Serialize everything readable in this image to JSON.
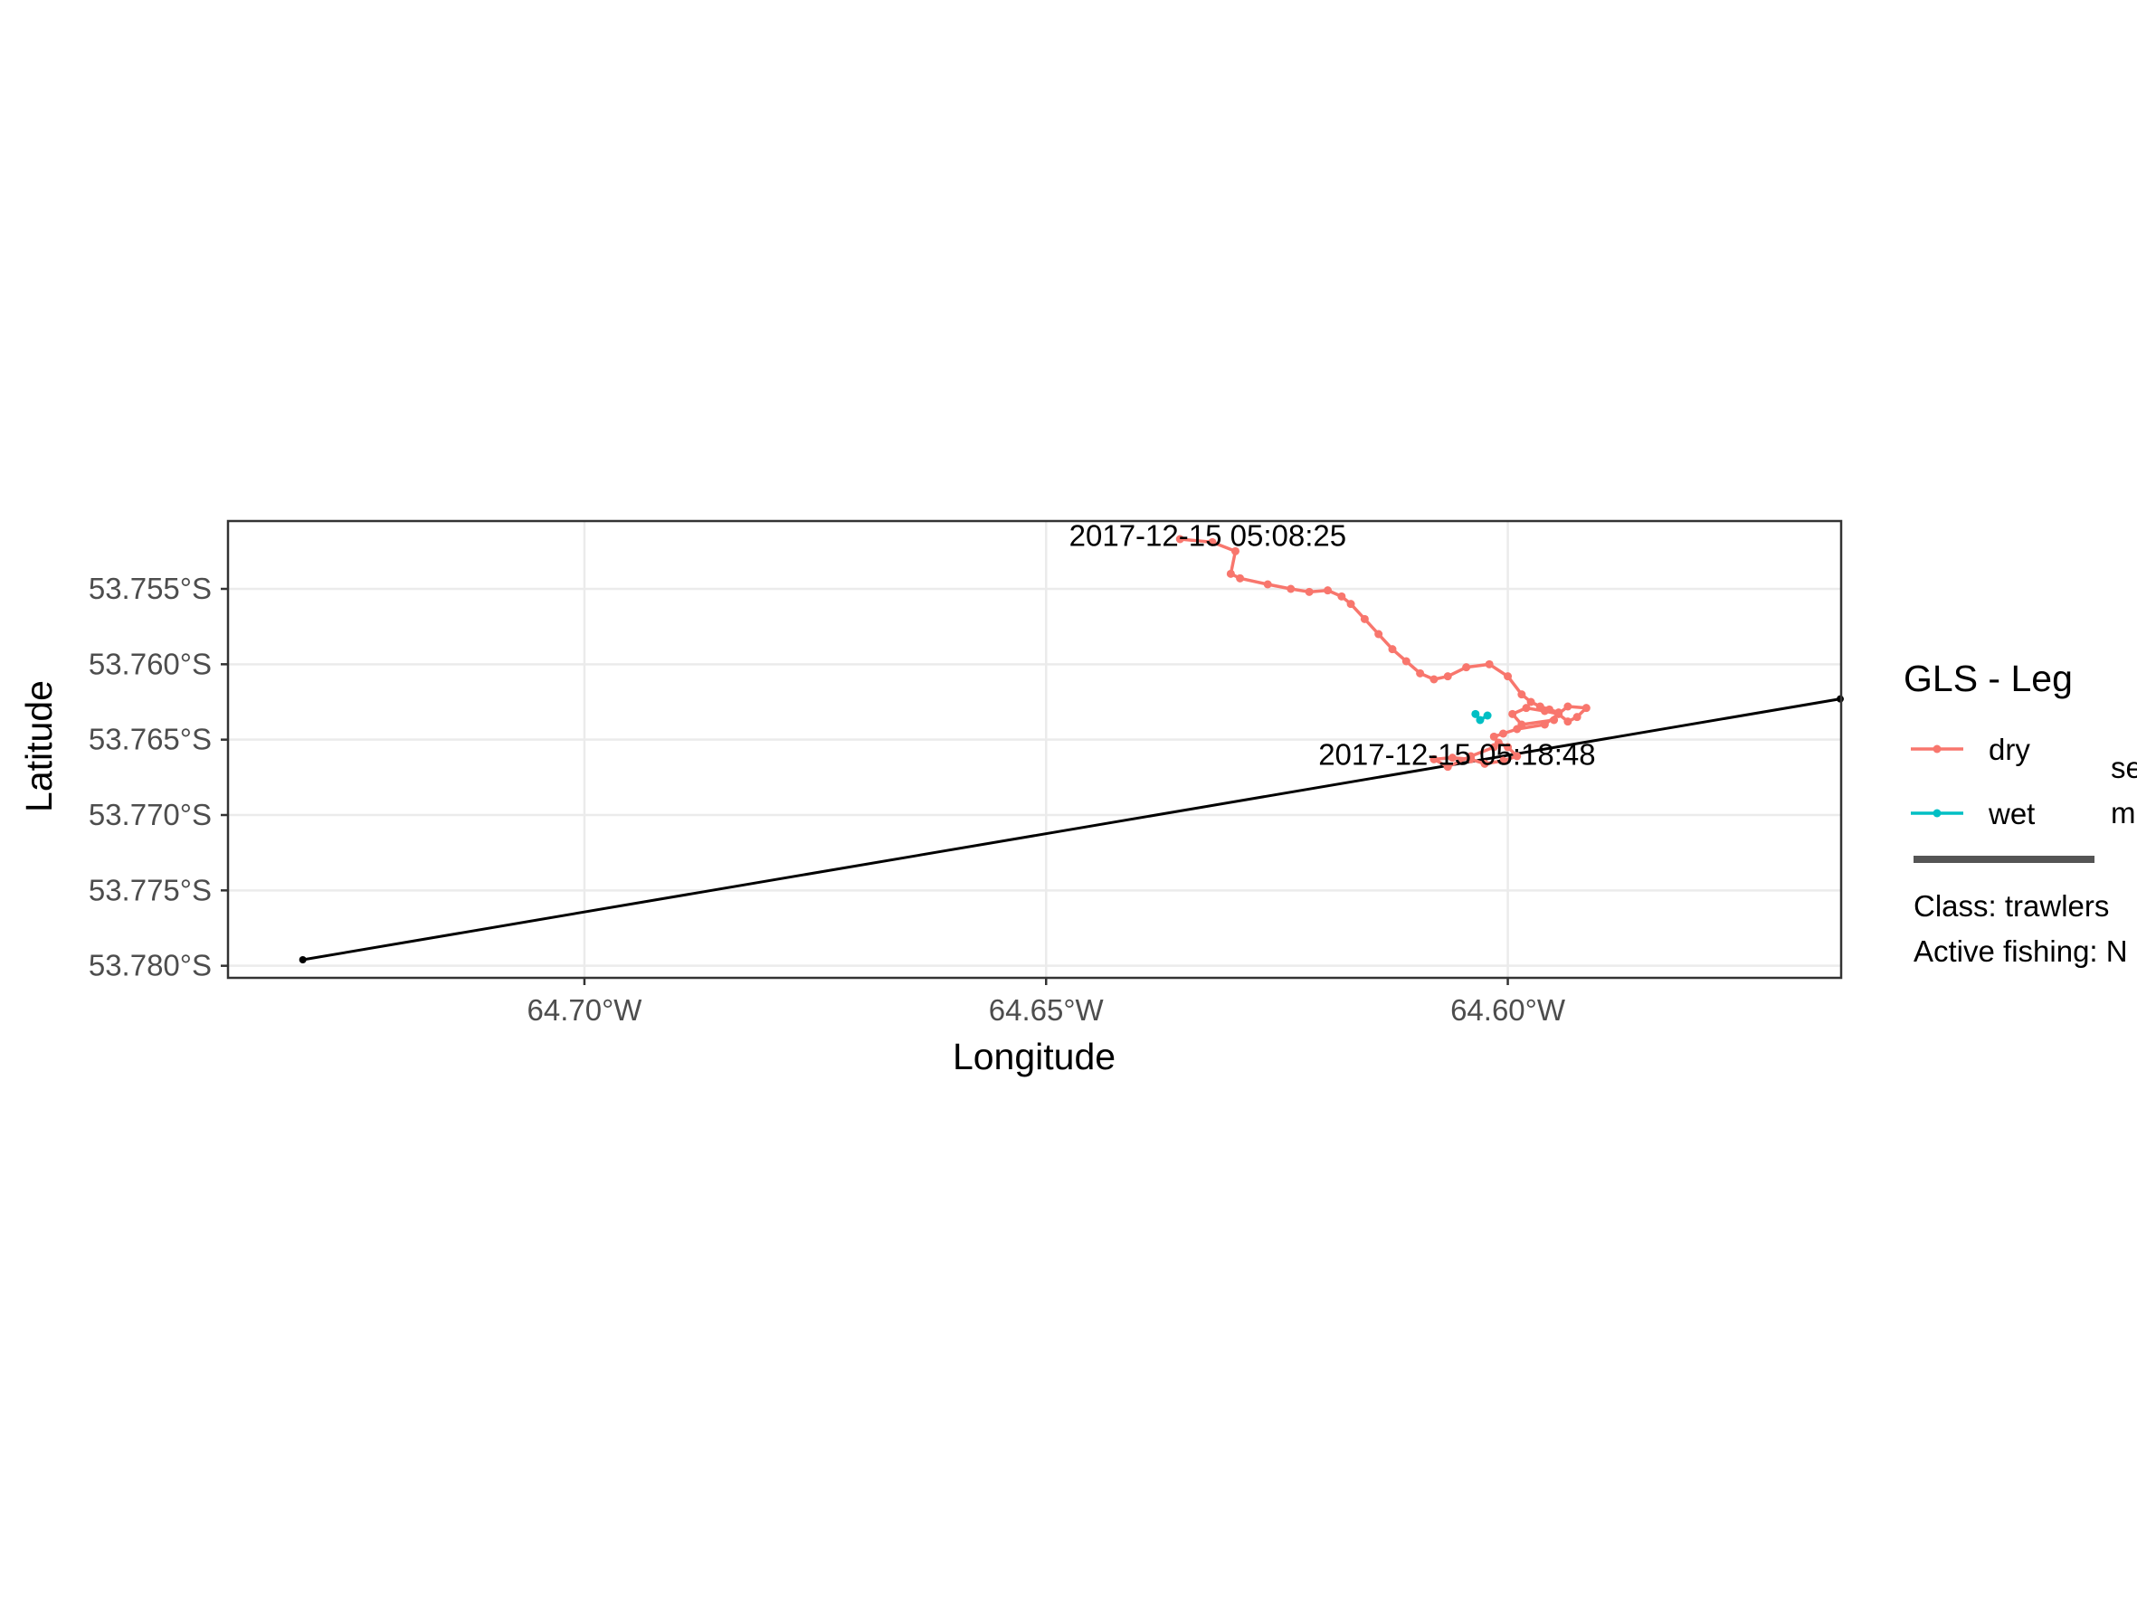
{
  "chart_data": {
    "type": "line",
    "xlabel": "Longitude",
    "ylabel": "Latitude",
    "xlim": [
      -64.7386,
      -64.5639
    ],
    "ylim": [
      -53.7808,
      -53.7505
    ],
    "x_ticks": [
      -64.7,
      -64.65,
      -64.6
    ],
    "x_tick_labels": [
      "64.70°W",
      "64.65°W",
      "64.60°W"
    ],
    "y_ticks": [
      -53.755,
      -53.76,
      -53.765,
      -53.77,
      -53.775,
      -53.78
    ],
    "y_tick_labels": [
      "53.755°S",
      "53.760°S",
      "53.765°S",
      "53.770°S",
      "53.775°S",
      "53.780°S"
    ],
    "grid": true,
    "legend": {
      "title": "GLS - Leg",
      "position": "right",
      "entries": [
        {
          "label": "dry",
          "color": "#F8766D"
        },
        {
          "label": "wet",
          "color": "#00BFC4"
        }
      ]
    },
    "series": [
      {
        "name": "dry",
        "color": "#F8766D",
        "x": [
          -64.6355,
          -64.632,
          -64.6295,
          -64.63,
          -64.629,
          -64.626,
          -64.6235,
          -64.6215,
          -64.6195,
          -64.618,
          -64.617,
          -64.6155,
          -64.614,
          -64.6125,
          -64.611,
          -64.6095,
          -64.608,
          -64.6065,
          -64.6045,
          -64.602,
          -64.6,
          -64.5985,
          -64.5975,
          -64.5965,
          -64.5955,
          -64.5945,
          -64.595,
          -64.5985,
          -64.5995,
          -64.598,
          -64.596,
          -64.5945,
          -64.5935,
          -64.5925,
          -64.5915,
          -64.5935,
          -64.596,
          -64.599,
          -64.6005,
          -64.6015,
          -64.601,
          -64.6,
          -64.599,
          -64.6005,
          -64.6025,
          -64.604,
          -64.606,
          -64.608,
          -64.6065,
          -64.604,
          -64.6015
        ],
        "y": [
          -53.7517,
          -53.7519,
          -53.7525,
          -53.754,
          -53.7543,
          -53.7547,
          -53.755,
          -53.7552,
          -53.7551,
          -53.7555,
          -53.756,
          -53.757,
          -53.758,
          -53.759,
          -53.7598,
          -53.7606,
          -53.761,
          -53.7608,
          -53.7602,
          -53.76,
          -53.7608,
          -53.762,
          -53.7625,
          -53.7628,
          -53.763,
          -53.7632,
          -53.7637,
          -53.764,
          -53.7633,
          -53.7629,
          -53.7631,
          -53.7633,
          -53.7638,
          -53.7635,
          -53.7629,
          -53.7628,
          -53.764,
          -53.7643,
          -53.7646,
          -53.7648,
          -53.7652,
          -53.7655,
          -53.7661,
          -53.7664,
          -53.7666,
          -53.7663,
          -53.7662,
          -53.7663,
          -53.7668,
          -53.7661,
          -53.7655
        ]
      },
      {
        "name": "wet",
        "color": "#00BFC4",
        "x": [
          -64.6035,
          -64.603,
          -64.6022
        ],
        "y": [
          -53.7633,
          -53.7637,
          -53.7634
        ]
      },
      {
        "color": "#000000",
        "x": [
          -64.7305,
          -64.564
        ],
        "y": [
          -53.7796,
          -53.7623
        ]
      }
    ],
    "annotations": [
      {
        "text": "2017-12-15 05:08:25",
        "x": -64.6325,
        "y": -53.7515
      },
      {
        "text": "2017-12-15 05:18:48",
        "x": -64.6055,
        "y": -53.766
      }
    ]
  },
  "side_info": {
    "partial_lines": [
      "se",
      "m"
    ],
    "lines": [
      "Class: trawlers",
      "Active fishing: N"
    ]
  }
}
